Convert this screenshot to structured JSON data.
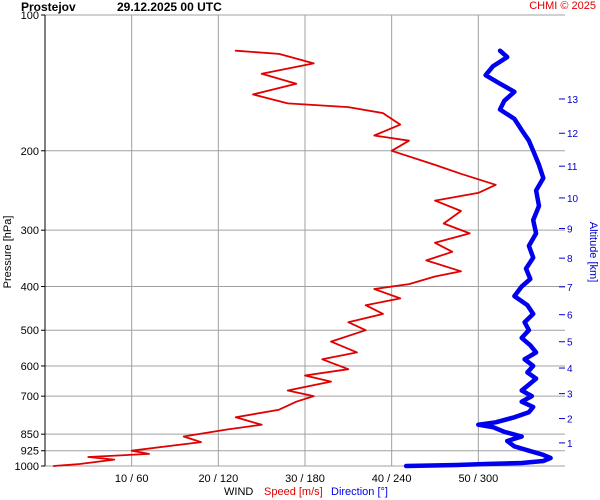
{
  "header": {
    "station": "Prostejov",
    "datetime": "29.12.2025 00 UTC",
    "credit": "CHMI © 2025"
  },
  "colors": {
    "speed": "#e00000",
    "direction": "#0000ee",
    "grid": "#a0a0a0",
    "axis": "#000000",
    "altitude_axis": "#0000cc"
  },
  "chart_data": {
    "type": "line",
    "ylabel": "Pressure [hPa]",
    "y2label": "Altitude [km]",
    "xlabel_parts": {
      "wind": "WIND",
      "speed": "Speed [m/s]",
      "direction": "Direction [°]"
    },
    "ylim": [
      1000,
      100
    ],
    "y_scale": "log",
    "pressure_ticks": [
      "100",
      "200",
      "300",
      "400",
      "500",
      "600",
      "700",
      "850",
      "925",
      "1000"
    ],
    "altitude_ticks": [
      "1",
      "2",
      "3",
      "4",
      "5",
      "6",
      "7",
      "8",
      "9",
      "10",
      "11",
      "12",
      "13"
    ],
    "speed_xlim": [
      0,
      60
    ],
    "direction_xlim": [
      0,
      360
    ],
    "x_ticks": [
      "10 / 60",
      "20 / 120",
      "30 / 180",
      "40 / 240",
      "50 / 300"
    ],
    "grid": true,
    "series": [
      {
        "name": "Speed [m/s]",
        "axis": "speed",
        "points": [
          [
            1,
            1000
          ],
          [
            4,
            990
          ],
          [
            8,
            968
          ],
          [
            5,
            955
          ],
          [
            12,
            940
          ],
          [
            10,
            925
          ],
          [
            14,
            905
          ],
          [
            18,
            885
          ],
          [
            16,
            860
          ],
          [
            21,
            830
          ],
          [
            25,
            810
          ],
          [
            22,
            780
          ],
          [
            27,
            750
          ],
          [
            29,
            720
          ],
          [
            31,
            700
          ],
          [
            28,
            680
          ],
          [
            33,
            650
          ],
          [
            30,
            630
          ],
          [
            35,
            610
          ],
          [
            32,
            580
          ],
          [
            36,
            560
          ],
          [
            33,
            530
          ],
          [
            37,
            500
          ],
          [
            35,
            480
          ],
          [
            39,
            460
          ],
          [
            37,
            440
          ],
          [
            41,
            425
          ],
          [
            38,
            405
          ],
          [
            42,
            395
          ],
          [
            45,
            380
          ],
          [
            48,
            370
          ],
          [
            44,
            350
          ],
          [
            47,
            335
          ],
          [
            45,
            320
          ],
          [
            49,
            305
          ],
          [
            46,
            290
          ],
          [
            48,
            272
          ],
          [
            45,
            258
          ],
          [
            50,
            248
          ],
          [
            52,
            238
          ],
          [
            48,
            225
          ],
          [
            45,
            215
          ],
          [
            40,
            200
          ],
          [
            42,
            190
          ],
          [
            38,
            185
          ],
          [
            41,
            175
          ],
          [
            39,
            165
          ],
          [
            35,
            160
          ],
          [
            28,
            157
          ],
          [
            24,
            150
          ],
          [
            29,
            142
          ],
          [
            25,
            135
          ],
          [
            31,
            128
          ],
          [
            27,
            122
          ],
          [
            22,
            120
          ]
        ]
      },
      {
        "name": "Direction [°]",
        "axis": "direction",
        "points": [
          [
            250,
            1000
          ],
          [
            285,
            995
          ],
          [
            305,
            990
          ],
          [
            330,
            985
          ],
          [
            345,
            975
          ],
          [
            350,
            960
          ],
          [
            345,
            945
          ],
          [
            335,
            925
          ],
          [
            325,
            905
          ],
          [
            320,
            880
          ],
          [
            330,
            860
          ],
          [
            318,
            840
          ],
          [
            310,
            820
          ],
          [
            300,
            810
          ],
          [
            312,
            800
          ],
          [
            325,
            780
          ],
          [
            335,
            760
          ],
          [
            338,
            740
          ],
          [
            330,
            720
          ],
          [
            337,
            700
          ],
          [
            330,
            680
          ],
          [
            335,
            660
          ],
          [
            340,
            640
          ],
          [
            334,
            620
          ],
          [
            338,
            600
          ],
          [
            332,
            580
          ],
          [
            340,
            560
          ],
          [
            336,
            540
          ],
          [
            330,
            520
          ],
          [
            335,
            500
          ],
          [
            332,
            480
          ],
          [
            338,
            460
          ],
          [
            334,
            440
          ],
          [
            325,
            420
          ],
          [
            330,
            400
          ],
          [
            336,
            385
          ],
          [
            333,
            365
          ],
          [
            338,
            345
          ],
          [
            335,
            325
          ],
          [
            340,
            305
          ],
          [
            338,
            285
          ],
          [
            342,
            265
          ],
          [
            340,
            245
          ],
          [
            345,
            230
          ],
          [
            342,
            215
          ],
          [
            338,
            200
          ],
          [
            335,
            190
          ],
          [
            330,
            180
          ],
          [
            325,
            170
          ],
          [
            315,
            162
          ],
          [
            318,
            155
          ],
          [
            325,
            148
          ],
          [
            315,
            142
          ],
          [
            305,
            136
          ],
          [
            310,
            130
          ],
          [
            320,
            124
          ],
          [
            315,
            120
          ]
        ]
      }
    ]
  }
}
